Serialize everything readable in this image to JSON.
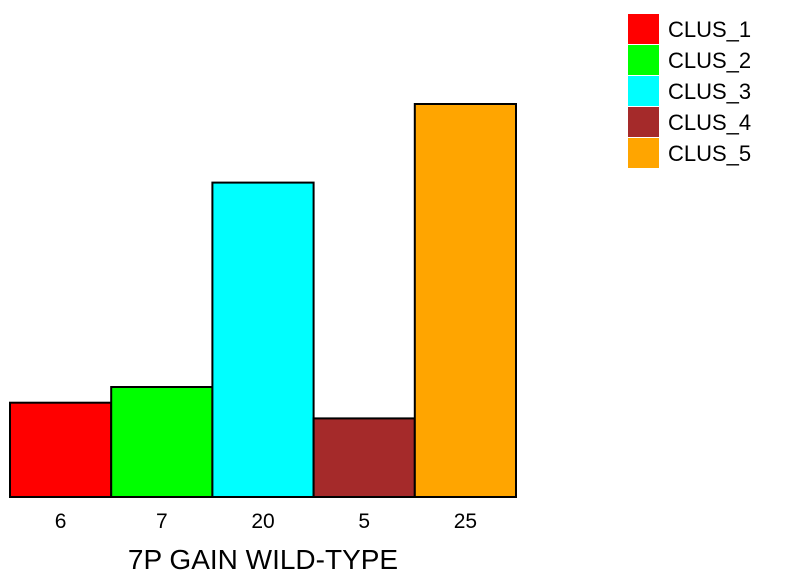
{
  "chart_data": {
    "type": "bar",
    "categories": [
      "CLUS_1",
      "CLUS_2",
      "CLUS_3",
      "CLUS_4",
      "CLUS_5"
    ],
    "values": [
      6,
      7,
      20,
      5,
      25
    ],
    "tick_labels": [
      "6",
      "7",
      "20",
      "5",
      "25"
    ],
    "colors": [
      "#ff0000",
      "#00ff00",
      "#00ffff",
      "#a52a2a",
      "#ffa500"
    ],
    "title": "",
    "xlabel": "7P GAIN WILD-TYPE",
    "ylabel": "",
    "ylim": [
      0,
      25
    ],
    "grid": false,
    "legend": {
      "position": "top-right",
      "entries": [
        "CLUS_1",
        "CLUS_2",
        "CLUS_3",
        "CLUS_4",
        "CLUS_5"
      ]
    }
  }
}
